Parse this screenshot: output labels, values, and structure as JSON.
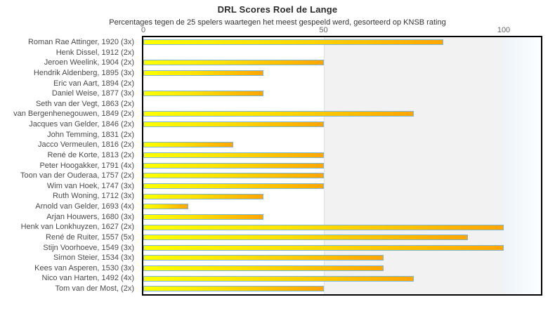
{
  "chart_data": {
    "type": "bar",
    "orientation": "horizontal",
    "title": "DRL Scores Roel de Lange",
    "subtitle": "Percentages tegen de 25 spelers waartegen het meest gespeeld werd, gesorteerd op KNSB rating",
    "x_ticks": [
      0,
      50,
      100
    ],
    "xlim": [
      0,
      110.3
    ],
    "grid": false,
    "legend": false,
    "categories": [
      "Roman Rae Attinger, 1920 (3x)",
      "Henk Dissel, 1912 (2x)",
      "Jeroen Weelink, 1904 (2x)",
      "Hendrik Aldenberg, 1895 (3x)",
      "Eric van Aart, 1894 (2x)",
      "Daniel Weise, 1877 (3x)",
      "Seth van der Vegt, 1863 (2x)",
      "van Bergenhenegouwen, 1849 (2x)",
      "Jacques van Gelder, 1846 (2x)",
      "John Temming, 1831 (2x)",
      "Jacco Vermeulen, 1816 (2x)",
      "René de Korte, 1813 (2x)",
      "Peter Hoogakker, 1791 (4x)",
      "Toon van der Ouderaa, 1757 (2x)",
      "Wim van Hoek, 1747 (3x)",
      "Ruth Woning, 1712 (3x)",
      "Arnold van Gelder, 1693 (4x)",
      "Arjan Houwers, 1680 (3x)",
      "Henk van Lonkhuyzen, 1627 (2x)",
      "René de Ruiter, 1557 (5x)",
      "Stijn Voorhoeve, 1549 (3x)",
      "Simon Steier, 1534 (3x)",
      "Kees van Asperen, 1530 (3x)",
      "Nico van Harten, 1492 (4x)",
      "Tom van der Most,  (2x)"
    ],
    "values": [
      83.3,
      0,
      50,
      33.3,
      0,
      33.3,
      0,
      75,
      50,
      0,
      25,
      50,
      50,
      50,
      50,
      33.3,
      12.5,
      33.3,
      100,
      90,
      100,
      66.7,
      66.7,
      75,
      50
    ],
    "players": [
      {
        "name": "Roman Rae Attinger",
        "rating": 1920,
        "games": 3,
        "score_pct": 83.3
      },
      {
        "name": "Henk Dissel",
        "rating": 1912,
        "games": 2,
        "score_pct": 0
      },
      {
        "name": "Jeroen Weelink",
        "rating": 1904,
        "games": 2,
        "score_pct": 50
      },
      {
        "name": "Hendrik Aldenberg",
        "rating": 1895,
        "games": 3,
        "score_pct": 33.3
      },
      {
        "name": "Eric van Aart",
        "rating": 1894,
        "games": 2,
        "score_pct": 0
      },
      {
        "name": "Daniel Weise",
        "rating": 1877,
        "games": 3,
        "score_pct": 33.3
      },
      {
        "name": "Seth van der Vegt",
        "rating": 1863,
        "games": 2,
        "score_pct": 0
      },
      {
        "name": "van Bergenhenegouwen",
        "rating": 1849,
        "games": 2,
        "score_pct": 75
      },
      {
        "name": "Jacques van Gelder",
        "rating": 1846,
        "games": 2,
        "score_pct": 50
      },
      {
        "name": "John Temming",
        "rating": 1831,
        "games": 2,
        "score_pct": 0
      },
      {
        "name": "Jacco Vermeulen",
        "rating": 1816,
        "games": 2,
        "score_pct": 25
      },
      {
        "name": "René de Korte",
        "rating": 1813,
        "games": 2,
        "score_pct": 50
      },
      {
        "name": "Peter Hoogakker",
        "rating": 1791,
        "games": 4,
        "score_pct": 50
      },
      {
        "name": "Toon van der Ouderaa",
        "rating": 1757,
        "games": 2,
        "score_pct": 50
      },
      {
        "name": "Wim van Hoek",
        "rating": 1747,
        "games": 3,
        "score_pct": 50
      },
      {
        "name": "Ruth Woning",
        "rating": 1712,
        "games": 3,
        "score_pct": 33.3
      },
      {
        "name": "Arnold van Gelder",
        "rating": 1693,
        "games": 4,
        "score_pct": 12.5
      },
      {
        "name": "Arjan Houwers",
        "rating": 1680,
        "games": 3,
        "score_pct": 33.3
      },
      {
        "name": "Henk van Lonkhuyzen",
        "rating": 1627,
        "games": 2,
        "score_pct": 100
      },
      {
        "name": "René de Ruiter",
        "rating": 1557,
        "games": 5,
        "score_pct": 90
      },
      {
        "name": "Stijn Voorhoeve",
        "rating": 1549,
        "games": 3,
        "score_pct": 100
      },
      {
        "name": "Simon Steier",
        "rating": 1534,
        "games": 3,
        "score_pct": 66.7
      },
      {
        "name": "Kees van Asperen",
        "rating": 1530,
        "games": 3,
        "score_pct": 66.7
      },
      {
        "name": "Nico van Harten",
        "rating": 1492,
        "games": 4,
        "score_pct": 75
      },
      {
        "name": "Tom van der Most",
        "rating": null,
        "games": 2,
        "score_pct": 50
      }
    ],
    "bands": [
      {
        "from": 0,
        "to": 50,
        "color": "#ffffff"
      },
      {
        "from": 50,
        "to": 100,
        "color": "#f2f2f2"
      },
      {
        "from": 100,
        "to": 110.3,
        "color": "#f3f8fc"
      }
    ]
  },
  "colors": {
    "bar_fill_start": "#ffff00",
    "bar_fill_end": "#ffa500",
    "bar_border": "#7db7d8",
    "plot_border": "#000000",
    "band_mid": "#f2f2f2",
    "band_right_start": "#eef4f9",
    "band_right_end": "#fcfeff",
    "title_text": "#2b2b2b",
    "label_text": "#4a4a4a",
    "tick_text": "#666666"
  }
}
